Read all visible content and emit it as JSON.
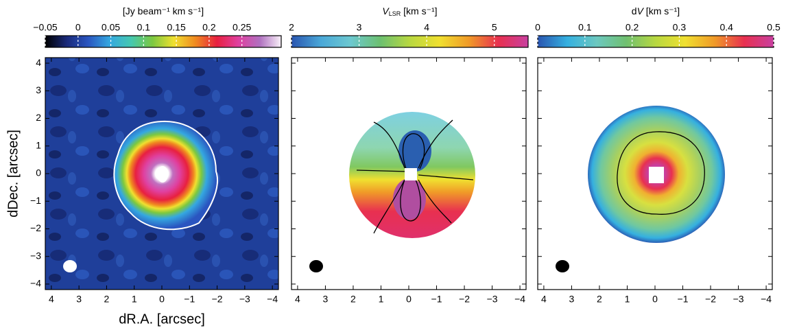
{
  "chart_data": [
    {
      "type": "heatmap",
      "colorbar_label": [
        {
          "text": "[Jy beam⁻¹ km s⁻¹]",
          "style": "normal"
        }
      ],
      "clim": [
        -0.05,
        0.31
      ],
      "cticks": [
        {
          "value": -0.05,
          "label": "−0.05"
        },
        0,
        0.05,
        0.1,
        0.15,
        0.2,
        0.25
      ],
      "colormap": [
        "#000000",
        "#1a2a7a",
        "#2a55c0",
        "#35a8e0",
        "#45c8b0",
        "#7cc840",
        "#f0e030",
        "#f08a20",
        "#e82040",
        "#e040a0",
        "#b070c0",
        "#f8f0f8"
      ],
      "xlim": [
        4.22,
        -4.22
      ],
      "ylim": [
        -4.2,
        4.2
      ],
      "xticks": [
        4,
        3,
        2,
        1,
        0,
        {
          "value": -1,
          "label": "−1"
        },
        {
          "value": -2,
          "label": "−2"
        },
        {
          "value": -3,
          "label": "−3"
        },
        {
          "value": -4,
          "label": "−4"
        }
      ],
      "yticks": [
        {
          "value": -4,
          "label": "−4"
        },
        {
          "value": -3,
          "label": "−3"
        },
        {
          "value": -2,
          "label": "−2"
        },
        {
          "value": -1,
          "label": "−1"
        },
        0,
        1,
        2,
        3,
        4
      ],
      "ytick_labels": true,
      "xlabel": "dR.A. [arcsec]",
      "ylabel": "dDec. [arcsec]"
    },
    {
      "type": "heatmap",
      "colorbar_label": [
        {
          "text": "V",
          "style": "italic"
        },
        {
          "text": "LSR",
          "style": "sub"
        },
        {
          "text": " [km s⁻¹]",
          "style": "normal"
        }
      ],
      "clim": [
        2,
        5.5
      ],
      "cticks": [
        2,
        3,
        4,
        5
      ],
      "colormap": [
        "#2a55b0",
        "#4aa8d8",
        "#6cc8d0",
        "#6cc070",
        "#b8d840",
        "#f0e030",
        "#f09a28",
        "#e83050",
        "#c840a0"
      ],
      "xlim": [
        4.22,
        -4.22
      ],
      "ylim": [
        -4.2,
        4.2
      ],
      "xticks": [
        4,
        3,
        2,
        1,
        0,
        {
          "value": -1,
          "label": "−1"
        },
        {
          "value": -2,
          "label": "−2"
        },
        {
          "value": -3,
          "label": "−3"
        },
        {
          "value": -4,
          "label": "−4"
        }
      ],
      "yticks": [
        -4,
        -3,
        -2,
        -1,
        0,
        1,
        2,
        3,
        4
      ],
      "ytick_labels": false
    },
    {
      "type": "heatmap",
      "colorbar_label": [
        {
          "text": "d",
          "style": "normal"
        },
        {
          "text": "V",
          "style": "italic"
        },
        {
          "text": " [km s⁻¹]",
          "style": "normal"
        }
      ],
      "clim": [
        0,
        0.5
      ],
      "cticks": [
        0,
        0.1,
        0.2,
        0.3,
        0.4,
        0.5
      ],
      "colormap": [
        "#2a55b0",
        "#35b0e0",
        "#6cc8c0",
        "#70c070",
        "#b8d840",
        "#f0e030",
        "#f09a28",
        "#e83050",
        "#c840a0"
      ],
      "xlim": [
        4.22,
        -4.22
      ],
      "ylim": [
        -4.2,
        4.2
      ],
      "xticks": [
        4,
        3,
        2,
        1,
        0,
        {
          "value": -1,
          "label": "−1"
        },
        {
          "value": -2,
          "label": "−2"
        },
        {
          "value": -3,
          "label": "−3"
        },
        {
          "value": -4,
          "label": "−4"
        }
      ],
      "yticks": [
        -4,
        -3,
        -2,
        -1,
        0,
        1,
        2,
        3,
        4
      ],
      "ytick_labels": false
    }
  ]
}
